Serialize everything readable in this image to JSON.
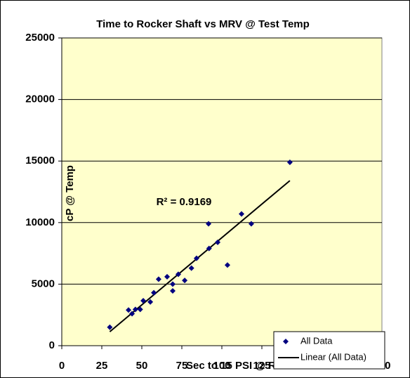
{
  "chart_data": {
    "type": "scatter",
    "title": "Time to Rocker Shaft vs  MRV @ Test Temp",
    "x_label": "Sec to 15 PSI @ Rocker shaft",
    "y_label": "cP @ Temp",
    "annotation": "R² = 0.9169",
    "series": [
      {
        "name": "All Data",
        "color": "#000080",
        "x": [
          30,
          41.7,
          43.9,
          46,
          49,
          50.9,
          55.3,
          57.5,
          60.5,
          65.8,
          69.3,
          69.3,
          72.8,
          76.8,
          81,
          84.2,
          91.7,
          92,
          97.4,
          103.5,
          112.3,
          118.4,
          142.5
        ],
        "values": [
          1500,
          2900,
          2600,
          2950,
          2950,
          3650,
          3550,
          4300,
          5400,
          5600,
          5000,
          4450,
          5800,
          5300,
          6300,
          7100,
          9900,
          7900,
          8400,
          6550,
          10700,
          9900,
          14900
        ]
      }
    ],
    "trendline": {
      "name": "Linear (All Data)",
      "color": "#000000"
    },
    "xlim": [
      0,
      200
    ],
    "xticks": [
      0,
      25,
      50,
      75,
      100,
      125,
      150,
      175,
      200
    ],
    "ylim": [
      0,
      25000
    ],
    "yticks": [
      0,
      5000,
      10000,
      15000,
      20000,
      25000
    ],
    "grid": true,
    "legend": "lower-right",
    "plot_background": "#ffffcc"
  }
}
